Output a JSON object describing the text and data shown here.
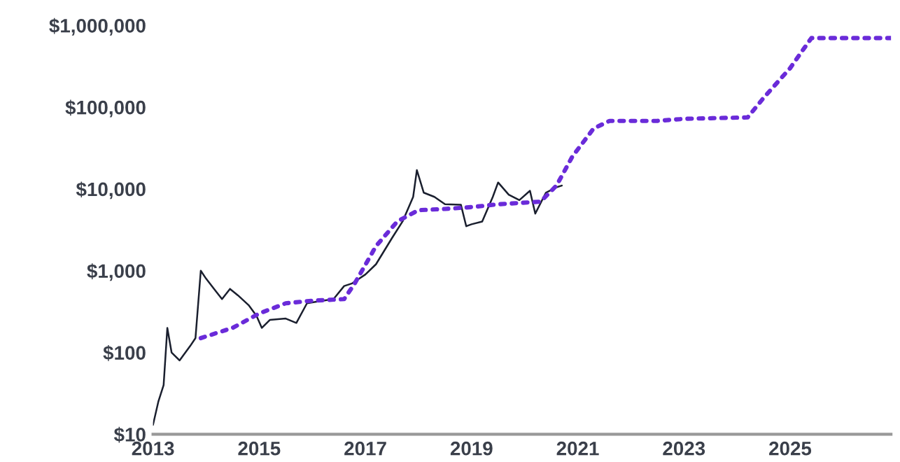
{
  "chart_data": {
    "type": "line",
    "log": true,
    "grid": false,
    "legend": false,
    "xlim": [
      2013,
      2026.9
    ],
    "xticks": [
      2013,
      2015,
      2017,
      2019,
      2021,
      2023,
      2025
    ],
    "ylim": [
      10,
      1000000
    ],
    "yticks": [
      {
        "value": 10,
        "label": "$10"
      },
      {
        "value": 100,
        "label": "$100"
      },
      {
        "value": 1000,
        "label": "$1,000"
      },
      {
        "value": 10000,
        "label": "$10,000"
      },
      {
        "value": 100000,
        "label": "$100,000"
      },
      {
        "value": 1000000,
        "label": "$1,000,000"
      }
    ],
    "series": [
      {
        "color": "#1a1f2e",
        "line_style": "solid",
        "x": [
          2013.0,
          2013.1,
          2013.2,
          2013.27,
          2013.35,
          2013.5,
          2013.7,
          2013.8,
          2013.9,
          2014.0,
          2014.15,
          2014.3,
          2014.45,
          2014.6,
          2014.8,
          2014.95,
          2015.05,
          2015.2,
          2015.5,
          2015.7,
          2015.9,
          2016.1,
          2016.4,
          2016.6,
          2016.75,
          2017.0,
          2017.2,
          2017.5,
          2017.7,
          2017.9,
          2017.97,
          2018.1,
          2018.3,
          2018.5,
          2018.8,
          2018.9,
          2019.0,
          2019.2,
          2019.4,
          2019.5,
          2019.7,
          2019.9,
          2020.1,
          2020.2,
          2020.4,
          2020.6,
          2020.7
        ],
        "values": [
          13,
          25,
          40,
          200,
          100,
          80,
          120,
          150,
          1000,
          800,
          600,
          450,
          600,
          500,
          380,
          280,
          200,
          250,
          260,
          230,
          400,
          420,
          450,
          650,
          700,
          900,
          1200,
          2500,
          4000,
          8000,
          17000,
          9000,
          8000,
          6500,
          6400,
          3500,
          3700,
          4000,
          8000,
          12000,
          8500,
          7300,
          9500,
          5000,
          9000,
          10500,
          11000
        ]
      },
      {
        "color": "#6a2bd9",
        "line_style": "dotted",
        "x": [
          2013.9,
          2014.5,
          2015.0,
          2015.5,
          2016.0,
          2016.6,
          2016.8,
          2017.2,
          2017.6,
          2018.0,
          2018.5,
          2019.0,
          2019.5,
          2020.3,
          2020.6,
          2020.9,
          2021.3,
          2021.6,
          2022.5,
          2023.0,
          2024.2,
          2024.5,
          2025.0,
          2025.4,
          2026.9
        ],
        "values": [
          150,
          200,
          300,
          400,
          430,
          450,
          700,
          2000,
          4000,
          5500,
          5700,
          6000,
          6500,
          7000,
          11000,
          25000,
          55000,
          68000,
          68000,
          72000,
          75000,
          130000,
          300000,
          700000,
          700000
        ]
      }
    ]
  }
}
